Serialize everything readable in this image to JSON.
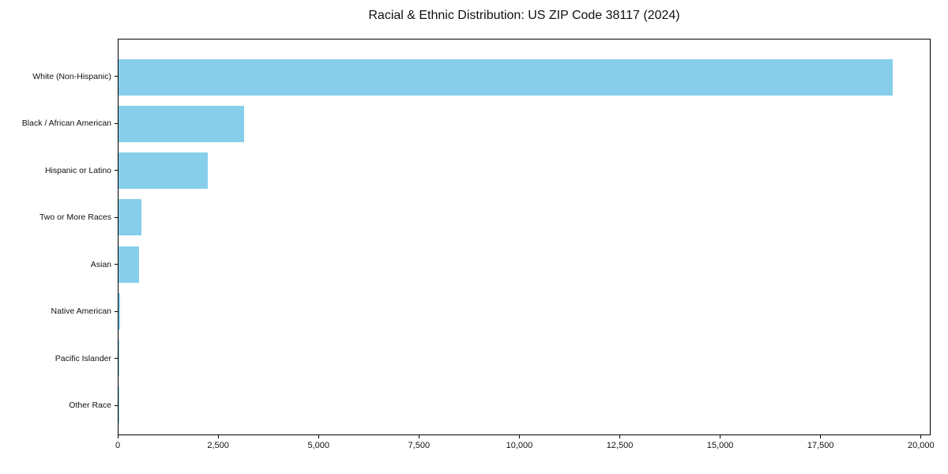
{
  "title": "Racial & Ethnic Distribution: US ZIP Code 38117 (2024)",
  "chart_data": {
    "type": "bar",
    "orientation": "horizontal",
    "title": "Racial & Ethnic Distribution: US ZIP Code 38117 (2024)",
    "categories": [
      "White (Non-Hispanic)",
      "Black / African American",
      "Hispanic or Latino",
      "Two or More Races",
      "Asian",
      "Native American",
      "Pacific Islander",
      "Other Race"
    ],
    "values": [
      19280,
      3130,
      2230,
      575,
      520,
      35,
      5,
      15
    ],
    "xlabel": "",
    "ylabel": "",
    "xlim": [
      0,
      20200
    ],
    "x_ticks": [
      0,
      2500,
      5000,
      7500,
      10000,
      12500,
      15000,
      17500,
      20000
    ],
    "x_tick_labels": [
      "0",
      "2,500",
      "5,000",
      "7,500",
      "10,000",
      "12,500",
      "15,000",
      "17,500",
      "20,000"
    ],
    "bar_color": "#87CEEB",
    "axis_color": "#000000",
    "grid": false,
    "legend": null
  }
}
